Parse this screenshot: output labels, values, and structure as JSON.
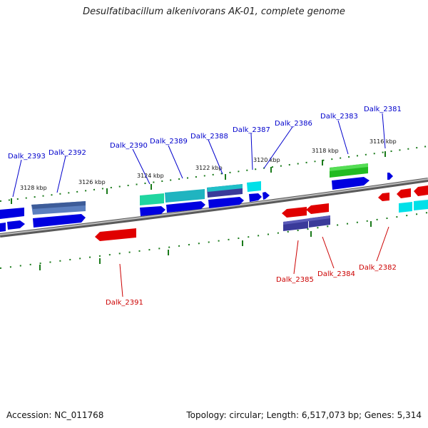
{
  "title": "Desulfatibacillum alkenivorans AK-01, complete genome",
  "footer": {
    "accession": "Accession: NC_011768",
    "topology": "Topology: circular; Length: 6,517,073 bp; Genes: 5,314"
  },
  "kbp_labels": [
    "3128 kbp",
    "3126 kbp",
    "3124 kbp",
    "3122 kbp",
    "3120 kbp",
    "3118 kbp",
    "3116 kbp"
  ],
  "top_labels": [
    "Dalk_2393",
    "Dalk_2392",
    "Dalk_2390",
    "Dalk_2389",
    "Dalk_2388",
    "Dalk_2387",
    "Dalk_2386",
    "Dalk_2383",
    "Dalk_2381"
  ],
  "bottom_labels": [
    "Dalk_2391",
    "Dalk_2385",
    "Dalk_2384",
    "Dalk_2382"
  ],
  "colors": {
    "forward": "#0000e0",
    "reverse": "#e00000",
    "label_forward": "#0000cc",
    "label_reverse": "#cc0000",
    "tick": "#1a7a1a",
    "backbone": "#888888"
  }
}
